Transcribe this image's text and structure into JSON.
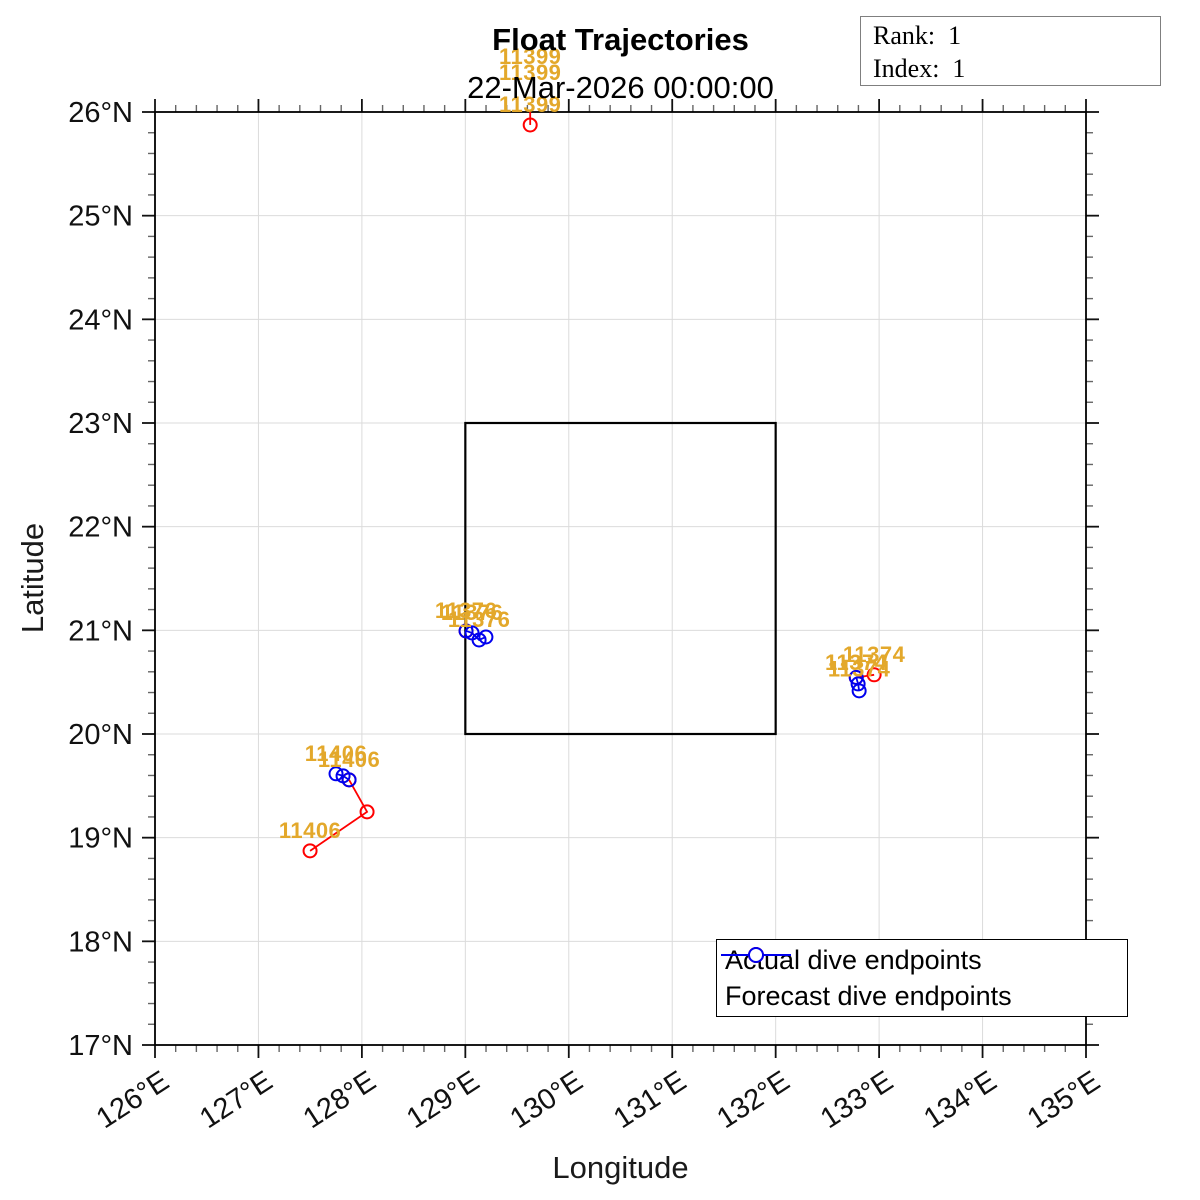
{
  "annotation_box": {
    "lines": [
      "Rank:  1",
      "Index:  1"
    ]
  },
  "chart_data": {
    "type": "scatter",
    "title": "Float Trajectories",
    "subtitle": "22-Mar-2026 00:00:00",
    "xlabel": "Longitude",
    "ylabel": "Latitude",
    "xlim": [
      126,
      135
    ],
    "ylim": [
      17,
      26
    ],
    "x_tick_labels": [
      "126°E",
      "127°E",
      "128°E",
      "129°E",
      "130°E",
      "131°E",
      "132°E",
      "133°E",
      "134°E",
      "135°E"
    ],
    "y_tick_labels": [
      "17°N",
      "18°N",
      "19°N",
      "20°N",
      "21°N",
      "22°N",
      "23°N",
      "24°N",
      "25°N",
      "26°N"
    ],
    "minor_tick_step": 0.2,
    "grid": true,
    "grid_color": "#dbdbdb",
    "actual_color": "#ff0000",
    "forecast_color": "#0000ee",
    "float_label_color": "#e3a82b",
    "study_region_box": {
      "lon": [
        129,
        132
      ],
      "lat": [
        20,
        23
      ]
    },
    "legend": {
      "position": "southeast",
      "entries": [
        {
          "label": "Actual dive endpoints",
          "color": "#ff0000"
        },
        {
          "label": "Forecast dive endpoints",
          "color": "#0000ee"
        }
      ]
    },
    "floats": [
      {
        "id": "11399",
        "actual": [
          [
            129.627,
            26.338
          ],
          [
            129.627,
            26.183
          ],
          [
            129.627,
            25.875
          ]
        ],
        "forecast": [],
        "label_points": [
          [
            129.627,
            26.338
          ],
          [
            129.627,
            26.183
          ],
          [
            129.627,
            25.875
          ]
        ]
      },
      {
        "id": "11376",
        "actual": [
          [
            129.007,
            20.994
          ]
        ],
        "forecast": [
          [
            129.007,
            20.994
          ],
          [
            129.065,
            20.975
          ],
          [
            129.133,
            20.907
          ],
          [
            129.199,
            20.936
          ]
        ],
        "label_points": [
          [
            129.007,
            20.994
          ],
          [
            129.065,
            20.975
          ],
          [
            129.133,
            20.907
          ]
        ]
      },
      {
        "id": "11374",
        "actual": [
          [
            132.779,
            20.545
          ],
          [
            132.952,
            20.571
          ]
        ],
        "forecast": [
          [
            132.779,
            20.545
          ],
          [
            132.797,
            20.483
          ],
          [
            132.807,
            20.416
          ]
        ],
        "label_points": [
          [
            132.952,
            20.571
          ],
          [
            132.779,
            20.49
          ],
          [
            132.807,
            20.43
          ]
        ]
      },
      {
        "id": "11406",
        "actual": [
          [
            127.499,
            18.873
          ],
          [
            128.05,
            19.249
          ],
          [
            127.876,
            19.558
          ]
        ],
        "forecast": [
          [
            127.876,
            19.558
          ],
          [
            127.818,
            19.596
          ],
          [
            127.75,
            19.616
          ]
        ],
        "label_points": [
          [
            127.499,
            18.873
          ],
          [
            127.75,
            19.616
          ],
          [
            127.876,
            19.558
          ]
        ]
      }
    ]
  }
}
